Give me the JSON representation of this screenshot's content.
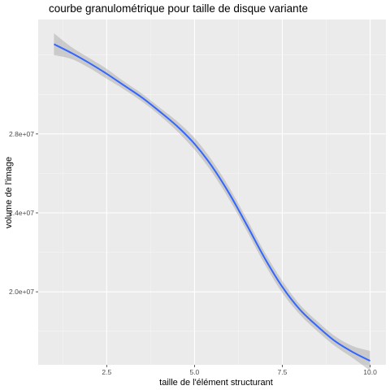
{
  "chart_data": {
    "type": "line",
    "title": "courbe granulométrique pour taille de disque variante",
    "xlabel": "taille de l'élément structurant",
    "ylabel": "volume de l'image",
    "xlim": [
      0.55,
      10.45
    ],
    "ylim": [
      16300000,
      33800000
    ],
    "x_ticks": [
      2.5,
      5.0,
      7.5,
      10.0
    ],
    "x_tick_labels": [
      "2.5",
      "5.0",
      "7.5",
      "10.0"
    ],
    "x_minor_ticks": [
      1.25,
      3.75,
      6.25,
      8.75
    ],
    "y_ticks": [
      20000000,
      24000000,
      28000000
    ],
    "y_tick_labels": [
      "2.0e+07",
      "2.4e+07",
      "2.8e+07"
    ],
    "y_minor_ticks": [
      18000000,
      22000000,
      26000000,
      30000000,
      32000000
    ],
    "grid": true,
    "series": [
      {
        "name": "smooth",
        "x": [
          1.0,
          1.5,
          2.0,
          2.5,
          3.0,
          3.5,
          4.0,
          4.5,
          5.0,
          5.5,
          6.0,
          6.5,
          7.0,
          7.5,
          8.0,
          8.5,
          9.0,
          9.5,
          10.0
        ],
        "y": [
          32550000,
          32100000,
          31600000,
          31050000,
          30450000,
          29850000,
          29150000,
          28400000,
          27500000,
          26350000,
          24950000,
          23350000,
          21700000,
          20250000,
          19100000,
          18250000,
          17500000,
          16950000,
          16500000
        ],
        "ci_lower": [
          32000000,
          31800000,
          31350000,
          30800000,
          30250000,
          29650000,
          28950000,
          28150000,
          27200000,
          26050000,
          24650000,
          23050000,
          21400000,
          19950000,
          18850000,
          18000000,
          17250000,
          16650000,
          16000000
        ],
        "ci_upper": [
          33100000,
          32400000,
          31850000,
          31300000,
          30650000,
          30050000,
          29350000,
          28650000,
          27800000,
          26650000,
          25250000,
          23650000,
          22000000,
          20550000,
          19350000,
          18500000,
          17750000,
          17250000,
          17000000
        ]
      }
    ],
    "colors": {
      "line": "#3366ff",
      "ribbon": "#999999",
      "panel": "#ebebeb",
      "grid_major": "#ffffff",
      "grid_minor": "#f5f5f5"
    }
  }
}
